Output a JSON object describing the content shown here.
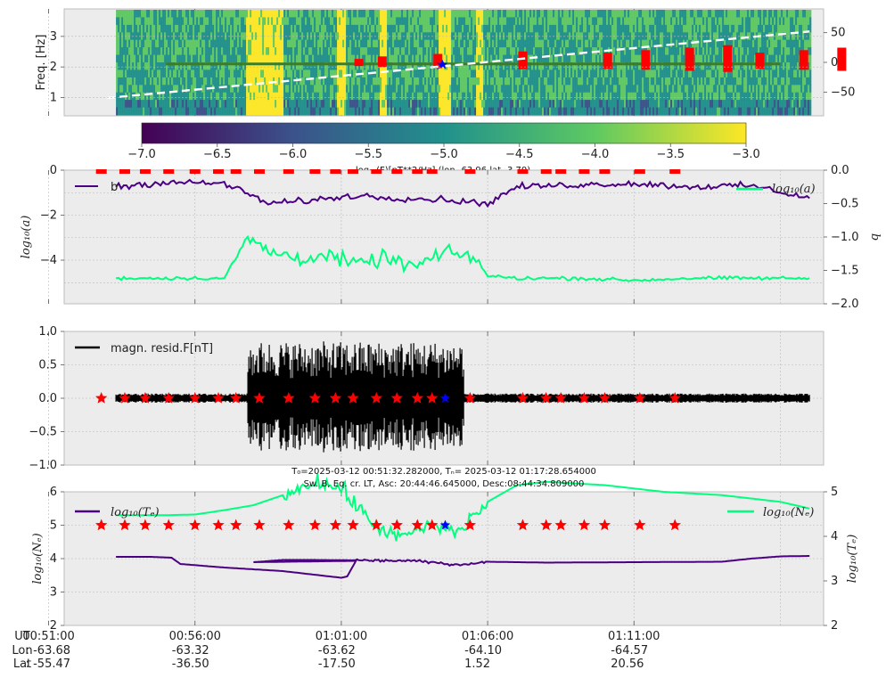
{
  "chart_data": [
    {
      "type": "heatmap",
      "ylabel": "Freq. [Hz]",
      "ylim": [
        0.4,
        3.9
      ],
      "yticks": [
        "1",
        "2",
        "3"
      ],
      "right_ylim": [
        -90,
        90
      ],
      "right_yticks": [
        "50",
        "0",
        "−50"
      ],
      "colorbar_ticks": [
        "−7.0",
        "−6.5",
        "−6.0",
        "−5.5",
        "−5.0",
        "−4.5",
        "−4.0",
        "−3.5",
        "−3.0"
      ],
      "colorbar_range": [
        -7.0,
        -3.0
      ],
      "colorbar_label": "log₁₀(F)[nT**2/Hz] (lon -63.96 lat -3.70)",
      "colormap": [
        "#440154",
        "#3b528b",
        "#21918c",
        "#5ec962",
        "#fde725"
      ],
      "bright_spans_min": [
        [
          57.7,
          59.0
        ],
        [
          60.8,
          61.1
        ],
        [
          62.3,
          62.5
        ],
        [
          64.3,
          64.7
        ],
        [
          65.6,
          65.8
        ]
      ],
      "event_bars_min": [
        61.6,
        62.4,
        64.3,
        67.2,
        70.1,
        71.4,
        72.9,
        74.2,
        75.3,
        76.8,
        78.1
      ],
      "dashed_line_right_axis": [
        [
          53.0,
          -60
        ],
        [
          77.0,
          52
        ]
      ]
    },
    {
      "type": "line",
      "ylim": [
        0,
        -2
      ],
      "yticks_left": [
        "0",
        "−2",
        "−4"
      ],
      "left_ylim": [
        -5.5,
        0
      ],
      "yticks_right": [
        "0.0",
        "−0.5",
        "−1.0",
        "−1.5",
        "−2.0"
      ],
      "ylabel_left": "log₁₀(a)",
      "ylabel_right": "b",
      "series": [
        {
          "name": "log₁₀(a)",
          "color": "#00ff7f",
          "x": [
            53.3,
            55.0,
            57.0,
            57.8,
            58.5,
            59.5,
            60.5,
            61.5,
            62.5,
            63.5,
            64.5,
            65.5,
            66.0,
            67.0,
            69.0,
            71.0,
            73.0,
            75.0,
            77.0
          ],
          "values": [
            -4.8,
            -4.8,
            -4.8,
            -3.0,
            -3.6,
            -3.9,
            -3.8,
            -4.2,
            -3.9,
            -4.3,
            -3.7,
            -3.8,
            -4.7,
            -4.8,
            -4.8,
            -4.9,
            -4.8,
            -4.8,
            -4.8
          ]
        },
        {
          "name": "b",
          "color": "#4b0082",
          "x": [
            53.3,
            55.0,
            57.0,
            57.8,
            58.5,
            60.0,
            61.5,
            63.0,
            64.5,
            66.0,
            67.0,
            69.0,
            71.0,
            73.0,
            75.0,
            77.0
          ],
          "values": [
            -0.25,
            -0.18,
            -0.2,
            -0.35,
            -0.5,
            -0.45,
            -0.38,
            -0.42,
            -0.44,
            -0.5,
            -0.25,
            -0.22,
            -0.2,
            -0.25,
            -0.23,
            -0.42
          ]
        }
      ],
      "legend_labels": [
        "b",
        "log₁₀(a)"
      ]
    },
    {
      "type": "line",
      "ylim": [
        -1.0,
        1.0
      ],
      "yticks": [
        "1.0",
        "0.5",
        "0.0",
        "−0.5",
        "−1.0"
      ],
      "series": [
        {
          "name": "magn. resid.F[nT]",
          "color": "#000000",
          "x_range": [
            53.3,
            77.0
          ],
          "active_spans_min": [
            [
              57.8,
              59.0
            ],
            [
              59.0,
              62.5
            ],
            [
              62.5,
              65.2
            ]
          ]
        }
      ]
    },
    {
      "type": "line",
      "ylim_left": [
        2,
        6
      ],
      "yticks_left": [
        "6",
        "5",
        "4",
        "3",
        "2"
      ],
      "ylim_right": [
        2,
        5
      ],
      "yticks_right": [
        "5",
        "4",
        "3",
        "2"
      ],
      "ylabel_left": "log₁₀(Nₑ)",
      "ylabel_right": "log₁₀(Tₑ)",
      "series": [
        {
          "name": "log₁₀(Tₑ)",
          "color": "#4b0082",
          "axis": "right",
          "x": [
            53.3,
            54.5,
            55.2,
            55.5,
            57.0,
            59.0,
            61.0,
            61.2,
            61.5,
            58.0,
            59.0,
            60.0,
            63.5,
            65.0,
            66.0,
            68.0,
            74.0,
            75.0,
            76.0,
            77.0
          ],
          "values": [
            3.54,
            3.54,
            3.52,
            3.38,
            3.3,
            3.22,
            3.07,
            3.1,
            3.45,
            3.42,
            3.47,
            3.47,
            3.45,
            3.36,
            3.43,
            3.41,
            3.43,
            3.5,
            3.55,
            3.56
          ]
        },
        {
          "name": "log₁₀(Nₑ)",
          "color": "#00ff7f",
          "axis": "left",
          "x": [
            53.3,
            54.0,
            55.0,
            56.0,
            57.0,
            58.0,
            59.0,
            60.0,
            61.0,
            62.0,
            63.0,
            64.0,
            65.0,
            66.0,
            67.0,
            68.0,
            70.0,
            72.0,
            74.0,
            76.0,
            77.0
          ],
          "values": [
            5.3,
            5.3,
            5.3,
            5.32,
            5.45,
            5.6,
            5.9,
            6.3,
            6.1,
            5.1,
            4.6,
            5.0,
            4.8,
            5.7,
            6.2,
            6.3,
            6.2,
            6.0,
            5.9,
            5.7,
            5.5
          ]
        }
      ],
      "title_line1": "T₀=2025-03-12 00:51:32.282000, Tₙ= 2025-03-12 01:17:28.654000",
      "title_line2": "Sw. B, Eq. cr. LT, Asc: 20:44:46.645000, Desc:08:44:34.809000",
      "x_range_min": [
        51.53,
        77.48
      ]
    }
  ],
  "event_markers_min": [
    52.8,
    53.6,
    54.3,
    55.1,
    56.0,
    56.8,
    57.4,
    58.2,
    59.2,
    60.1,
    60.8,
    61.4,
    62.2,
    62.9,
    63.6,
    64.1,
    65.4,
    67.2,
    68.0,
    68.5,
    69.3,
    70.0,
    71.2,
    72.4
  ],
  "blue_marker_min": 64.55,
  "xaxis": {
    "row_labels": [
      "UT",
      "Lon",
      "Lat"
    ],
    "ticks": [
      {
        "t": "00:51:00",
        "lon": ": -63.68",
        "lat": ": -55.47"
      },
      {
        "t": "00:56:00",
        "lon": "-63.32",
        "lat": "-36.50"
      },
      {
        "t": "01:01:00",
        "lon": "-63.62",
        "lat": "-17.50"
      },
      {
        "t": "01:06:00",
        "lon": "-64.10",
        "lat": "1.52"
      },
      {
        "t": "01:11:00",
        "lon": "-64.57",
        "lat": "20.56"
      }
    ]
  }
}
